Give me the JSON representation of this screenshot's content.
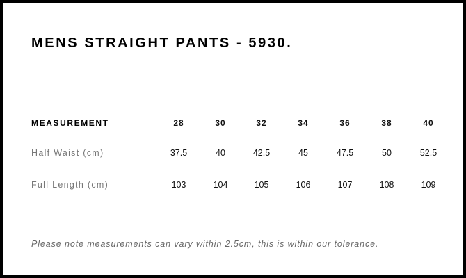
{
  "title": "MENS STRAIGHT PANTS - 5930.",
  "table": {
    "header_label": "MEASUREMENT",
    "sizes": [
      "28",
      "30",
      "32",
      "34",
      "36",
      "38",
      "40"
    ],
    "rows": [
      {
        "label": "Half Waist (cm)",
        "values": [
          "37.5",
          "40",
          "42.5",
          "45",
          "47.5",
          "50",
          "52.5"
        ]
      },
      {
        "label": "Full Length (cm)",
        "values": [
          "103",
          "104",
          "105",
          "106",
          "107",
          "108",
          "109"
        ]
      }
    ]
  },
  "note": "Please note measurements can vary within 2.5cm, this is within our tolerance."
}
